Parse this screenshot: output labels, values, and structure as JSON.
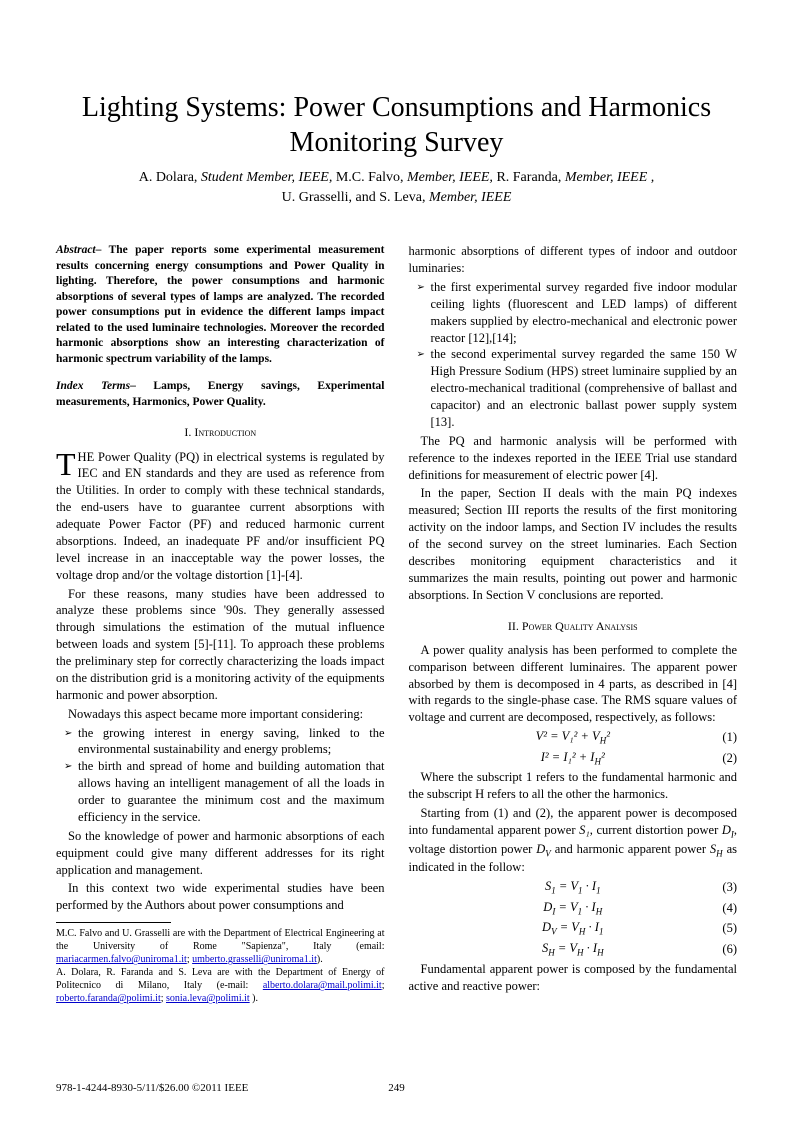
{
  "title": "Lighting Systems: Power Consumptions and Harmonics Monitoring Survey",
  "authors_line1_parts": [
    {
      "name": "A. Dolara, ",
      "role": "Student Member, IEEE, "
    },
    {
      "name": "M.C. Falvo, ",
      "role": "Member, IEEE, "
    },
    {
      "name": "R. Faranda, ",
      "role": "Member, IEEE ,"
    }
  ],
  "authors_line2_parts": [
    {
      "name": "U. Grasselli, and S. Leva, ",
      "role": "Member, IEEE"
    }
  ],
  "abstract_label": "Abstract",
  "abstract_text": "– The paper reports some experimental measurement results concerning energy consumptions and Power Quality in lighting. Therefore, the power consumptions and harmonic absorptions of several types of lamps are analyzed. The recorded power consumptions put in evidence the different lamps impact related to the used luminaire technologies. Moreover the recorded harmonic absorptions show an interesting characterization of harmonic spectrum variability of the lamps.",
  "index_label": "Index Terms",
  "index_text": "– Lamps, Energy savings, Experimental measurements, Harmonics, Power Quality.",
  "sec1_num": "I.",
  "sec1_title": "Introduction",
  "intro_p1": "THE Power Quality (PQ) in electrical systems is regulated by IEC and EN standards and they are used as reference from the Utilities. In order to comply with these technical standards, the end-users have to guarantee current absorptions with adequate Power Factor (PF) and reduced harmonic current absorptions. Indeed, an inadequate PF and/or insufficient PQ level increase in an inacceptable way the power losses, the voltage drop and/or the voltage distortion [1]-[4].",
  "intro_p2": "For these reasons, many studies have been addressed to analyze these problems since '90s. They generally assessed through simulations the estimation of the mutual influence between loads and system [5]-[11]. To approach these problems the preliminary step for correctly characterizing the loads impact on the distribution grid is a monitoring activity of the equipments harmonic and power absorption.",
  "intro_p3": "Nowadays this aspect became more important considering:",
  "intro_bullets": [
    "the growing interest in energy saving, linked to the environmental sustainability and energy problems;",
    "the birth and spread of home and building automation that allows having an intelligent management of all the loads in order to guarantee the minimum cost and the maximum efficiency in the service."
  ],
  "intro_p4": "So the knowledge of power and harmonic absorptions of each equipment could give many different addresses for its right application and management.",
  "intro_p5": "In this context two wide experimental studies have been performed by the Authors about power consumptions and",
  "footnote_p1_pre": "M.C. Falvo and U. Grasselli are with the Department of Electrical Engineering at the University of Rome \"Sapienza\", Italy (email: ",
  "footnote_email1": "mariacarmen.falvo@uniroma1.it",
  "footnote_email2": "umberto.grasselli@uniroma1.it",
  "footnote_p2_pre": "A. Dolara, R. Faranda and S. Leva are with the Department of Energy of Politecnico di Milano, Italy (e-mail: ",
  "footnote_email3": "alberto.dolara@mail.polimi.it",
  "footnote_email4": "roberto.faranda@polimi.it",
  "footnote_email5": "sonia.leva@polimi.it",
  "col2_p1": "harmonic absorptions of different types of indoor and outdoor luminaries:",
  "col2_bullets": [
    "the first experimental survey regarded five indoor modular ceiling lights (fluorescent and LED lamps) of different makers supplied by electro-mechanical and electronic power reactor [12],[14];",
    "the second experimental survey regarded the same 150 W High Pressure Sodium (HPS) street luminaire supplied by an electro-mechanical traditional (comprehensive of ballast and capacitor) and an electronic ballast power supply system [13]."
  ],
  "col2_p2": "The PQ and harmonic analysis will be performed with reference to the indexes reported in the IEEE Trial use standard definitions for measurement of electric power [4].",
  "col2_p3": "In the paper, Section II deals with the main PQ indexes measured; Section III reports the results of the first monitoring activity on the indoor lamps, and Section IV includes the results of the second survey on the street luminaries. Each Section describes monitoring equipment characteristics and it summarizes the main results, pointing out power and harmonic absorptions. In Section V conclusions are reported.",
  "sec2_num": "II.",
  "sec2_title": "Power Quality Analysis",
  "pq_p1": "A power quality analysis has been performed to complete the comparison between different luminaires. The apparent power absorbed by them is decomposed in 4 parts, as described in [4] with regards to the single-phase case. The RMS square values of voltage and current are decomposed, respectively, as follows:",
  "equations": [
    {
      "body": "V² = V₁² + V",
      "sub": "H",
      "tail": "²",
      "num": "(1)"
    },
    {
      "body": "I² = I₁² + I",
      "sub": "H",
      "tail": "²",
      "num": "(2)"
    }
  ],
  "pq_p2": "Where the subscript 1 refers to the fundamental harmonic and the subscript H refers to all the other the harmonics.",
  "pq_p3_pre": "Starting from (1) and (2), the apparent power is decomposed into fundamental apparent power ",
  "pq_p3_s1": "S₁",
  "pq_p3_mid1": ", current distortion power ",
  "pq_p3_di": "D",
  "pq_p3_di_sub": "I",
  "pq_p3_mid2": ", voltage distortion power ",
  "pq_p3_dv": "D",
  "pq_p3_dv_sub": "V",
  "pq_p3_mid3": " and harmonic apparent power ",
  "pq_p3_sh": "S",
  "pq_p3_sh_sub": "H",
  "pq_p3_tail": " as indicated in the follow:",
  "equations2": [
    {
      "lhs": "S",
      "lsub": "1",
      "mid": " = V",
      "msub": "1",
      "op": " · I",
      "rsub": "1",
      "num": "(3)"
    },
    {
      "lhs": "D",
      "lsub": "I",
      "mid": " = V",
      "msub": "1",
      "op": " · I",
      "rsub": "H",
      "num": "(4)"
    },
    {
      "lhs": "D",
      "lsub": "V",
      "mid": " = V",
      "msub": "H",
      "op": " · I",
      "rsub": "1",
      "num": "(5)"
    },
    {
      "lhs": "S",
      "lsub": "H",
      "mid": " = V",
      "msub": "H",
      "op": " · I",
      "rsub": "H",
      "num": "(6)"
    }
  ],
  "pq_p4": "Fundamental apparent power is composed by the fundamental active and reactive power:",
  "footer_left": "978-1-4244-8930-5/11/$26.00 ©2011 IEEE",
  "page_number": "249"
}
